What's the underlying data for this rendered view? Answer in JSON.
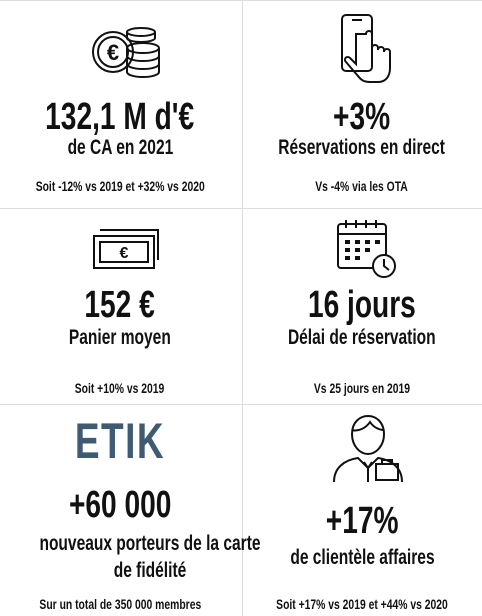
{
  "cells": [
    {
      "value": "132,1 M d'€",
      "label": "de CA en 2021",
      "note": "Soit -12% vs 2019 et +32% vs 2020"
    },
    {
      "value": "+3%",
      "label": "Réservations en direct",
      "note": "Vs -4% via les OTA"
    },
    {
      "value": "152 €",
      "label": "Panier moyen",
      "note": "Soit +10% vs 2019"
    },
    {
      "value": "16 jours",
      "label": "Délai de réservation",
      "note": "Vs 25 jours en 2019"
    },
    {
      "logo": "ETIK",
      "value": "+60 000",
      "label": "nouveaux porteurs de la carte de fidélité",
      "note": "Sur un total de 350 000 membres"
    },
    {
      "value": "+17%",
      "label": "de clientèle affaires",
      "note": "Soit +17% vs 2019 et +44% vs 2020"
    }
  ]
}
